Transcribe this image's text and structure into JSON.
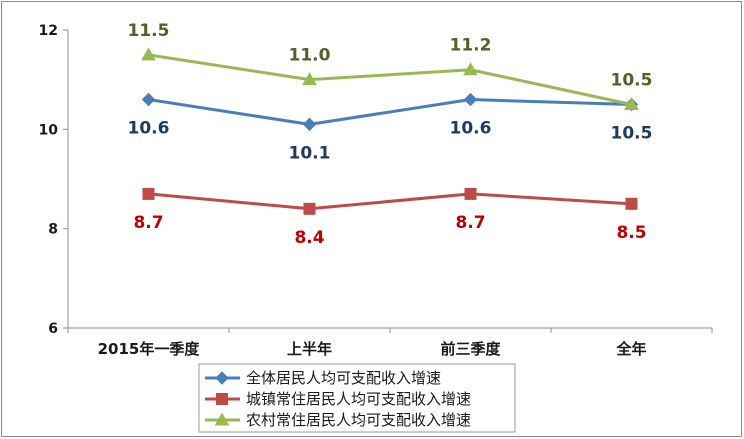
{
  "chart_data": {
    "type": "line",
    "categories": [
      "2015年一季度",
      "上半年",
      "前三季度",
      "全年"
    ],
    "ylim": [
      6,
      12
    ],
    "yticks": [
      6,
      8,
      10,
      12
    ],
    "grid": false,
    "legend_position": "bottom-center",
    "series": [
      {
        "name": "全体居民人均可支配收入增速",
        "values": [
          10.6,
          10.1,
          10.6,
          10.5
        ],
        "labels": [
          "10.6",
          "10.1",
          "10.6",
          "10.5"
        ],
        "color": "#4a7ebb",
        "label_color": "#1f3864",
        "marker": "diamond",
        "label_position": "below"
      },
      {
        "name": "城镇常住居民人均可支配收入增速",
        "values": [
          8.7,
          8.4,
          8.7,
          8.5
        ],
        "labels": [
          "8.7",
          "8.4",
          "8.7",
          "8.5"
        ],
        "color": "#be4b48",
        "label_color": "#c00000",
        "marker": "square",
        "label_position": "below"
      },
      {
        "name": "农村常住居民人均可支配收入增速",
        "values": [
          11.5,
          11.0,
          11.2,
          10.5
        ],
        "labels": [
          "11.5",
          "11.0",
          "11.2",
          "10.5"
        ],
        "color": "#98b954",
        "label_color": "#4f6228",
        "marker": "triangle",
        "label_position": "above"
      }
    ]
  }
}
